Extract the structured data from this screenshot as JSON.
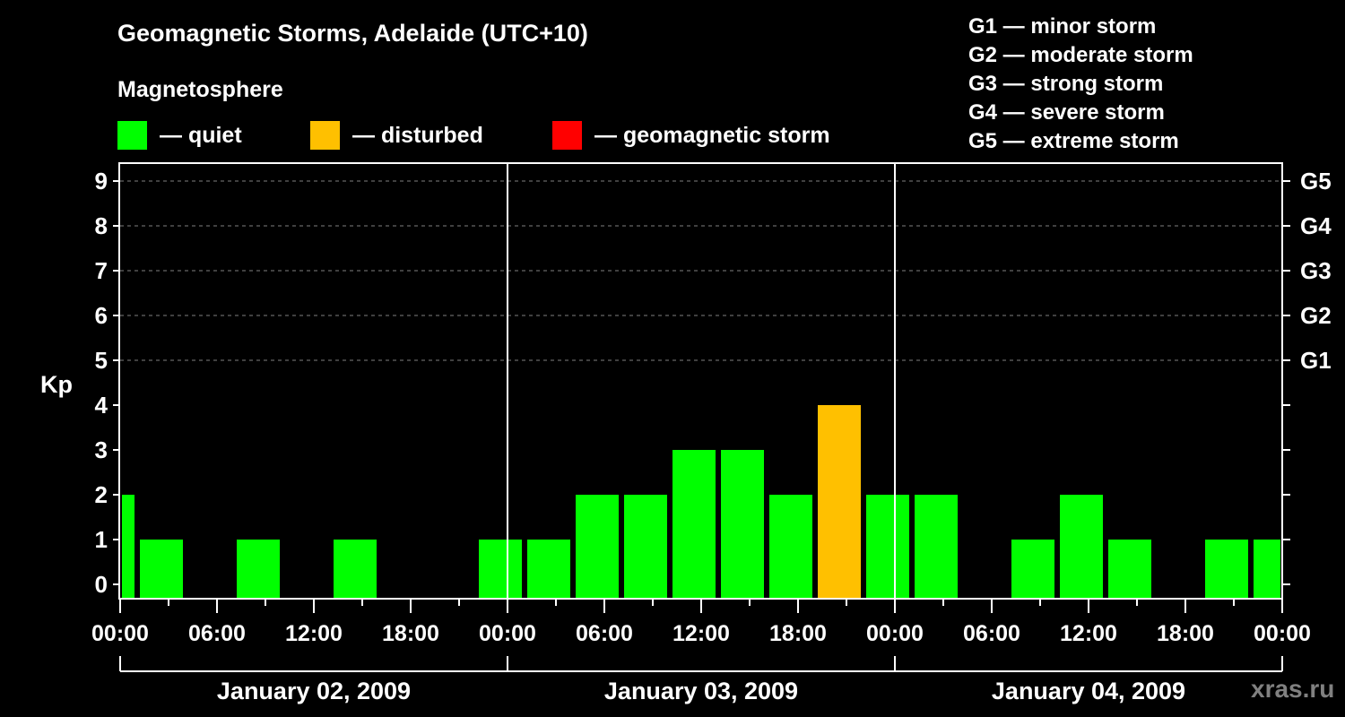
{
  "header": {
    "title": "Geomagnetic Storms, Adelaide (UTC+10)",
    "section": "Magnetosphere"
  },
  "legend": [
    {
      "label": "— quiet",
      "color": "#00ff00"
    },
    {
      "label": "— disturbed",
      "color": "#ffc000"
    },
    {
      "label": "— geomagnetic storm",
      "color": "#ff0000"
    }
  ],
  "storm_scale": [
    "G1 — minor storm",
    "G2 — moderate storm",
    "G3 — strong storm",
    "G4 — severe storm",
    "G5 — extreme storm"
  ],
  "watermark": "xras.ru",
  "chart_data": {
    "type": "bar",
    "title": "Geomagnetic Storms, Adelaide (UTC+10)",
    "ylabel": "Kp",
    "xlabel": "",
    "ylim": [
      0,
      9
    ],
    "yticks": [
      0,
      1,
      2,
      3,
      4,
      5,
      6,
      7,
      8,
      9
    ],
    "right_axis_ticks": [
      {
        "value": 5,
        "label": "G1"
      },
      {
        "value": 6,
        "label": "G2"
      },
      {
        "value": 7,
        "label": "G3"
      },
      {
        "value": 8,
        "label": "G4"
      },
      {
        "value": 9,
        "label": "G5"
      }
    ],
    "grid": "dashed horizontal lines at Kp 5-9",
    "xtick_labels": [
      "00:00",
      "06:00",
      "12:00",
      "18:00",
      "00:00",
      "06:00",
      "12:00",
      "18:00",
      "00:00",
      "06:00",
      "12:00",
      "18:00",
      "00:00"
    ],
    "date_labels": [
      "January 02, 2009",
      "January 03, 2009",
      "January 04, 2009"
    ],
    "categories": [
      "Jan01 22:30",
      "Jan02 01:30",
      "Jan02 04:30",
      "Jan02 07:30",
      "Jan02 10:30",
      "Jan02 13:30",
      "Jan02 16:30",
      "Jan02 19:30",
      "Jan02 22:30",
      "Jan03 01:30",
      "Jan03 04:30",
      "Jan03 07:30",
      "Jan03 10:30",
      "Jan03 13:30",
      "Jan03 16:30",
      "Jan03 19:30",
      "Jan03 22:30",
      "Jan04 01:30",
      "Jan04 04:30",
      "Jan04 07:30",
      "Jan04 10:30",
      "Jan04 13:30",
      "Jan04 16:30",
      "Jan04 19:30",
      "Jan04 22:30"
    ],
    "values": [
      2,
      1,
      0,
      1,
      0,
      1,
      0,
      0,
      1,
      1,
      2,
      2,
      3,
      3,
      2,
      4,
      2,
      2,
      0,
      1,
      2,
      1,
      0,
      1,
      1
    ],
    "colors": {
      "quiet": "#00ff00",
      "disturbed": "#ffc000",
      "storm": "#ff0000"
    },
    "thresholds": {
      "disturbed_min": 4,
      "storm_min": 5
    }
  }
}
